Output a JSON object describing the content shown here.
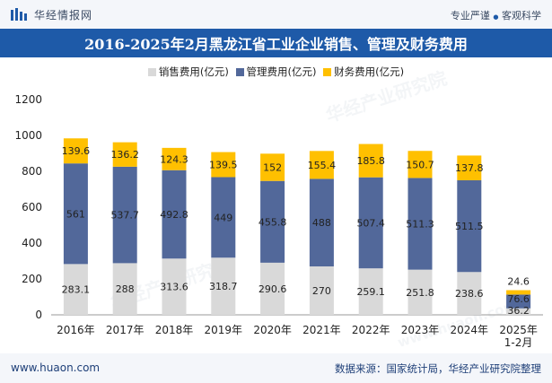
{
  "header": {
    "brand": "华经情报网",
    "tagline_left": "专业严谨",
    "tagline_sep": "●",
    "tagline_right": "客观科学"
  },
  "watermark": {
    "text": "华经产业研究院",
    "url_text": "www.huaon.com"
  },
  "footer": {
    "url": "www.huaon.com",
    "source": "数据来源：国家统计局，华经产业研究院整理"
  },
  "colors": {
    "sales": "#d9d9d9",
    "management": "#52689a",
    "finance": "#ffc000",
    "title_bg": "#1e5aa8"
  },
  "chart_data": {
    "type": "bar",
    "stacked": true,
    "title": "2016-2025年2月黑龙江省工业企业销售、管理及财务费用",
    "categories": [
      "2016年",
      "2017年",
      "2018年",
      "2019年",
      "2020年",
      "2021年",
      "2022年",
      "2023年",
      "2024年",
      "2025年\n1-2月"
    ],
    "series": [
      {
        "name": "销售费用(亿元)",
        "values": [
          283.1,
          288,
          313.6,
          318.7,
          290.6,
          270,
          259.1,
          251.8,
          238.6,
          36.2
        ]
      },
      {
        "name": "管理费用(亿元)",
        "values": [
          561,
          537.7,
          492.8,
          449,
          455.8,
          488,
          507.4,
          511.3,
          511.5,
          76.6
        ]
      },
      {
        "name": "财务费用(亿元)",
        "values": [
          139.6,
          136.2,
          124.3,
          139.5,
          152,
          155.4,
          185.8,
          150.7,
          137.8,
          24.6
        ]
      }
    ],
    "ylim": [
      0,
      1200
    ],
    "yticks": [
      0,
      200,
      400,
      600,
      800,
      1000,
      1200
    ],
    "xlabel": "",
    "ylabel": "",
    "legend_position": "top"
  }
}
